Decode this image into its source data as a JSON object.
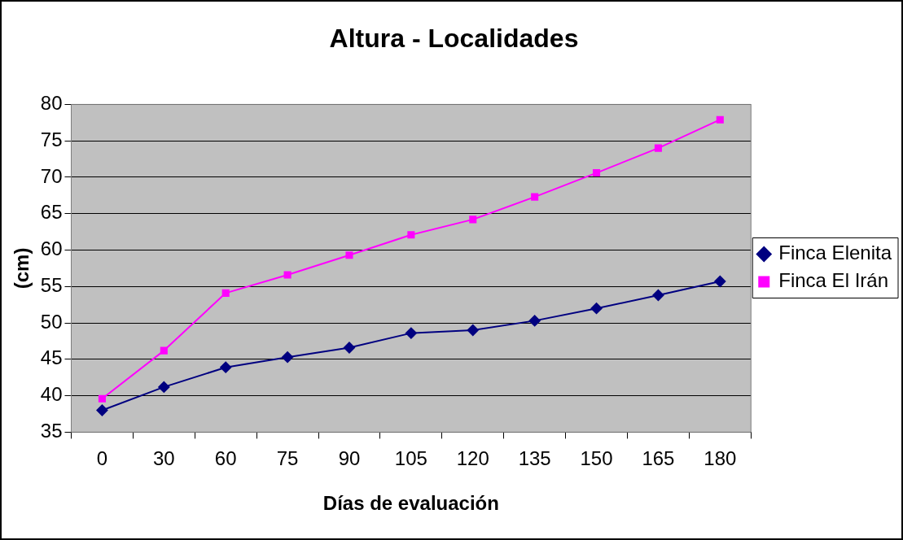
{
  "chart_data": {
    "type": "line",
    "title": "Altura - Localidades",
    "xlabel": "Días de evaluación",
    "ylabel": "(cm)",
    "categories": [
      "0",
      "30",
      "60",
      "75",
      "90",
      "105",
      "120",
      "135",
      "150",
      "165",
      "180"
    ],
    "series": [
      {
        "name": "Finca Elenita",
        "color": "#000080",
        "marker": "diamond",
        "values": [
          38,
          41.2,
          43.9,
          45.3,
          46.6,
          48.6,
          49,
          50.3,
          52,
          53.8,
          55.7
        ]
      },
      {
        "name": "Finca El Irán",
        "color": "#ff00ff",
        "marker": "square",
        "values": [
          39.6,
          46.2,
          54.1,
          56.6,
          59.3,
          62.1,
          64.2,
          67.3,
          70.6,
          74,
          77.9
        ]
      }
    ],
    "ylim": [
      35,
      80
    ],
    "yticks": [
      35,
      40,
      45,
      50,
      55,
      60,
      65,
      70,
      75,
      80
    ],
    "grid": "y",
    "legend": "right",
    "line_style": "solid"
  }
}
